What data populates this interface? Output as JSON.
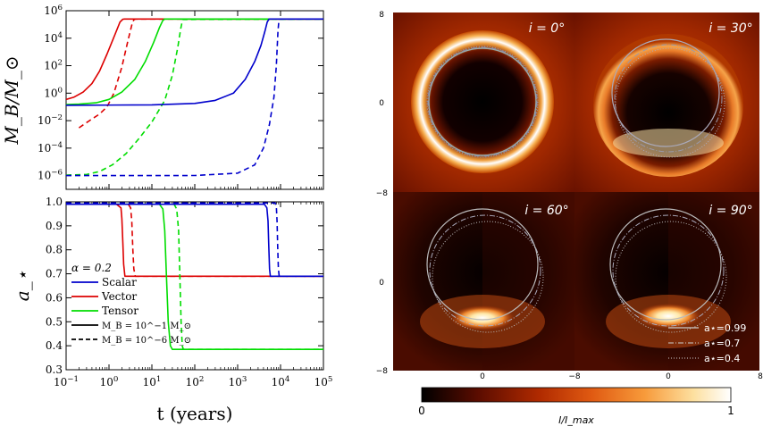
{
  "chart_data": [
    {
      "type": "line",
      "panel": "top-left",
      "xscale": "log",
      "yscale": "log",
      "xlim": [
        0.1,
        100000
      ],
      "ylim": [
        1e-07,
        1000000.0
      ],
      "ylabel": "M_B/M_⊙",
      "y_ticks": [
        {
          "v": 1e-06,
          "m": "10",
          "e": "−6"
        },
        {
          "v": 0.0001,
          "m": "10",
          "e": "−4"
        },
        {
          "v": 0.01,
          "m": "10",
          "e": "−2"
        },
        {
          "v": 1,
          "m": "10",
          "e": "0"
        },
        {
          "v": 100,
          "m": "10",
          "e": "2"
        },
        {
          "v": 10000,
          "m": "10",
          "e": "4"
        },
        {
          "v": 1000000,
          "m": "10",
          "e": "6"
        }
      ],
      "series": [
        {
          "color": "#dd0000",
          "dash": false,
          "x": [
            0.1,
            0.15,
            0.25,
            0.4,
            0.6,
            0.9,
            1.3,
            1.8,
            2.1,
            2.3,
            100000
          ],
          "y": [
            0.35,
            0.5,
            1.2,
            5,
            40,
            700,
            12000,
            150000,
            240000,
            250000,
            250000
          ]
        },
        {
          "color": "#dd0000",
          "dash": true,
          "x": [
            0.2,
            0.35,
            0.6,
            0.9,
            1.3,
            2.0,
            2.8,
            3.4,
            3.8,
            4.2,
            100000
          ],
          "y": [
            0.003,
            0.01,
            0.03,
            0.1,
            1,
            80,
            8000,
            90000,
            220000,
            250000,
            250000
          ]
        },
        {
          "color": "#00dd00",
          "dash": false,
          "x": [
            0.1,
            0.2,
            0.5,
            1,
            2,
            4,
            7,
            11,
            15,
            18,
            20,
            100000
          ],
          "y": [
            0.15,
            0.16,
            0.2,
            0.35,
            1.2,
            10,
            200,
            5000,
            60000,
            200000,
            250000,
            250000
          ]
        },
        {
          "color": "#00dd00",
          "dash": true,
          "x": [
            0.1,
            0.3,
            0.6,
            1.2,
            2.5,
            5,
            10,
            20,
            30,
            40,
            47,
            52,
            100000
          ],
          "y": [
            1.1e-06,
            1.2e-06,
            2e-06,
            6e-06,
            4e-05,
            0.0005,
            0.008,
            0.3,
            20,
            2000,
            50000,
            230000,
            250000
          ]
        },
        {
          "color": "#0000cc",
          "dash": false,
          "x": [
            0.1,
            10,
            100,
            300,
            800,
            1500,
            2500,
            3500,
            4300,
            4900,
            5400,
            100000
          ],
          "y": [
            0.13,
            0.14,
            0.18,
            0.3,
            1,
            10,
            200,
            3000,
            30000,
            150000,
            250000,
            250000
          ]
        },
        {
          "color": "#0000cc",
          "dash": true,
          "x": [
            0.1,
            10,
            100,
            1000,
            2500,
            4000,
            5500,
            7000,
            8000,
            8700,
            9200,
            100000
          ],
          "y": [
            1e-06,
            1e-06,
            1.02e-06,
            1.5e-06,
            6e-06,
            0.0001,
            0.005,
            0.5,
            100,
            30000,
            250000,
            250000
          ]
        }
      ]
    },
    {
      "type": "line",
      "panel": "bottom-left",
      "xscale": "log",
      "xlim": [
        0.1,
        100000
      ],
      "ylim": [
        0.3,
        1.0
      ],
      "ylabel": "a_⋆",
      "xlabel": "t (years)",
      "y_ticks": [
        "0.3",
        "0.4",
        "0.5",
        "0.6",
        "0.7",
        "0.8",
        "0.9",
        "1.0"
      ],
      "x_ticks": [
        {
          "v": 0.1,
          "m": "10",
          "e": "−1"
        },
        {
          "v": 1,
          "m": "10",
          "e": "0"
        },
        {
          "v": 10,
          "m": "10",
          "e": "1"
        },
        {
          "v": 100,
          "m": "10",
          "e": "2"
        },
        {
          "v": 1000,
          "m": "10",
          "e": "3"
        },
        {
          "v": 10000,
          "m": "10",
          "e": "4"
        },
        {
          "v": 100000,
          "m": "10",
          "e": "5"
        }
      ],
      "series": [
        {
          "color": "#dd0000",
          "dash": false,
          "x": [
            0.1,
            1.5,
            1.9,
            2.0,
            2.1,
            2.2,
            2.35,
            100000
          ],
          "y": [
            0.99,
            0.99,
            0.975,
            0.93,
            0.83,
            0.74,
            0.69,
            0.69
          ]
        },
        {
          "color": "#dd0000",
          "dash": true,
          "x": [
            0.1,
            2.8,
            3.2,
            3.4,
            3.6,
            3.8,
            4.1,
            100000
          ],
          "y": [
            0.99,
            0.99,
            0.975,
            0.92,
            0.8,
            0.72,
            0.69,
            0.69
          ]
        },
        {
          "color": "#00dd00",
          "dash": false,
          "x": [
            0.1,
            15,
            18,
            20,
            22,
            24,
            27,
            30,
            100000
          ],
          "y": [
            0.99,
            0.99,
            0.97,
            0.88,
            0.68,
            0.5,
            0.4,
            0.385,
            0.385
          ]
        },
        {
          "color": "#00dd00",
          "dash": true,
          "x": [
            0.1,
            33,
            38,
            42,
            45,
            48,
            51,
            54,
            100000
          ],
          "y": [
            0.99,
            0.99,
            0.97,
            0.88,
            0.68,
            0.5,
            0.4,
            0.385,
            0.385
          ]
        },
        {
          "color": "#0000cc",
          "dash": false,
          "x": [
            0.1,
            4200,
            4800,
            5100,
            5300,
            5550,
            5800,
            100000
          ],
          "y": [
            0.99,
            0.99,
            0.975,
            0.92,
            0.82,
            0.72,
            0.69,
            0.69
          ]
        },
        {
          "color": "#0000cc",
          "dash": true,
          "x": [
            0.1,
            7500,
            8000,
            8300,
            8600,
            8900,
            9300,
            100000
          ],
          "y": [
            0.995,
            0.995,
            0.98,
            0.92,
            0.8,
            0.72,
            0.69,
            0.69
          ]
        }
      ],
      "legend": {
        "placement": "left",
        "title": "α = 0.2",
        "items": [
          {
            "label": "Scalar",
            "color": "#0000cc",
            "dash": false
          },
          {
            "label": "Vector",
            "color": "#dd0000",
            "dash": false
          },
          {
            "label": "Tensor",
            "color": "#00dd00",
            "dash": false
          },
          {
            "label": "M_B = 10^−1 M_⊙",
            "color": "#000000",
            "dash": false
          },
          {
            "label": "M_B = 10^−6 M_⊙",
            "color": "#000000",
            "dash": true
          }
        ]
      }
    },
    {
      "type": "heatmap",
      "panel": "right",
      "colormap": [
        "#000000",
        "#5a0c00",
        "#b02a00",
        "#e05a12",
        "#f79a3a",
        "#fde0a0",
        "#ffffff"
      ],
      "panels": [
        {
          "label": "i = 0°"
        },
        {
          "label": "i = 30°"
        },
        {
          "label": "i = 60°"
        },
        {
          "label": "i = 90°"
        }
      ],
      "axis_labels": {
        "left_top": "8",
        "left_mid_top": "0",
        "left_mid": "−8",
        "left_mid_bottom": "0",
        "left_bottom": "−8",
        "bottom_0a": "0",
        "bottom_m8": "−8",
        "bottom_0b": "0",
        "bottom_8": "8"
      },
      "contour_legend": [
        {
          "label": "a⋆=0.99",
          "style": "solid"
        },
        {
          "label": "a⋆=0.7",
          "style": "dashdot"
        },
        {
          "label": "a⋆=0.4",
          "style": "dotted"
        }
      ],
      "colorbar": {
        "min_label": "0",
        "max_label": "1",
        "label": "I/I_max"
      }
    }
  ]
}
